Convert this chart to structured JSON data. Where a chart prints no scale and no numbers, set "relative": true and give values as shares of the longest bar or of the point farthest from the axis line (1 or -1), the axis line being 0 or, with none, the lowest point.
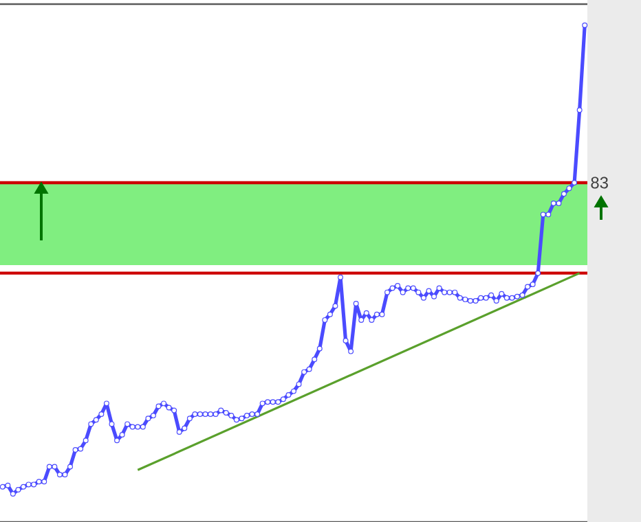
{
  "chart_data": {
    "type": "line",
    "relative": true,
    "categories": [
      null,
      null,
      null,
      null,
      null,
      null,
      null,
      null,
      null,
      null,
      null,
      null,
      null,
      null,
      null,
      null,
      null,
      null,
      null,
      null,
      null,
      null,
      null,
      null,
      null,
      null,
      null,
      null,
      null,
      null,
      null,
      null,
      null,
      null,
      null,
      null,
      null,
      null,
      null,
      null,
      null,
      null,
      null,
      null,
      null,
      null,
      null,
      null,
      null,
      null,
      null,
      null,
      null,
      null,
      null,
      null,
      null,
      null,
      null,
      null,
      null,
      null,
      null,
      null,
      null,
      null,
      null,
      null,
      null,
      null,
      null,
      null,
      null,
      null,
      null,
      null,
      null,
      null,
      null,
      null,
      null,
      null,
      null,
      null,
      null,
      null,
      null,
      null,
      null,
      null,
      null,
      null,
      null,
      null,
      null,
      null,
      null,
      null,
      null,
      null,
      null,
      null,
      null,
      null,
      null,
      null,
      null,
      null,
      null,
      null,
      null,
      null,
      null
    ],
    "series": [
      {
        "color": "#4b4bff",
        "marker": "circle",
        "values": [
          0.015,
          0.018,
          0,
          0.009,
          0.015,
          0.02,
          0.02,
          0.026,
          0.026,
          0.058,
          0.058,
          0.041,
          0.041,
          0.058,
          0.094,
          0.096,
          0.114,
          0.149,
          0.158,
          0.17,
          0.193,
          0.149,
          0.114,
          0.126,
          0.149,
          0.143,
          0.143,
          0.143,
          0.161,
          0.167,
          0.187,
          0.193,
          0.184,
          0.178,
          0.132,
          0.14,
          0.161,
          0.17,
          0.17,
          0.17,
          0.17,
          0.17,
          0.178,
          0.173,
          0.167,
          0.158,
          0.161,
          0.167,
          0.17,
          0.17,
          0.193,
          0.196,
          0.196,
          0.196,
          0.202,
          0.211,
          0.219,
          0.234,
          0.26,
          0.266,
          0.287,
          0.31,
          0.371,
          0.383,
          0.401,
          0.462,
          0.327,
          0.304,
          0.406,
          0.371,
          0.386,
          0.371,
          0.383,
          0.383,
          0.43,
          0.439,
          0.444,
          0.43,
          0.439,
          0.439,
          0.43,
          0.418,
          0.433,
          0.421,
          0.439,
          0.43,
          0.43,
          0.43,
          0.418,
          0.415,
          0.412,
          0.412,
          0.418,
          0.418,
          0.424,
          0.412,
          0.427,
          0.418,
          0.418,
          0.421,
          0.424,
          0.442,
          0.447,
          0.471,
          0.596,
          0.596,
          0.62,
          0.62,
          0.64,
          0.652,
          0.664,
          0.819,
          1
        ]
      },
      {
        "type": "line",
        "color": "#5aa02c",
        "marker": "none",
        "values": [
          null,
          null,
          null,
          null,
          null,
          null,
          null,
          null,
          null,
          null,
          null,
          null,
          null,
          null,
          null,
          null,
          null,
          null,
          null,
          null,
          null,
          null,
          null,
          null,
          null,
          null,
          0.051,
          null,
          null,
          null,
          null,
          null,
          null,
          null,
          null,
          null,
          null,
          null,
          null,
          null,
          null,
          null,
          null,
          null,
          null,
          null,
          null,
          null,
          null,
          null,
          null,
          null,
          null,
          null,
          null,
          null,
          null,
          null,
          null,
          null,
          null,
          null,
          null,
          null,
          null,
          null,
          null,
          null,
          null,
          null,
          null,
          null,
          null,
          null,
          null,
          null,
          null,
          null,
          null,
          null,
          null,
          null,
          null,
          null,
          null,
          null,
          null,
          null,
          null,
          null,
          null,
          null,
          null,
          null,
          null,
          null,
          null,
          null,
          null,
          null,
          null,
          null,
          null,
          null,
          null,
          null,
          null,
          null,
          null,
          null,
          null,
          0.471,
          null
        ]
      }
    ],
    "ref_lines": [
      {
        "axis": "y",
        "value": 0.664,
        "color": "#cc0000"
      },
      {
        "axis": "y",
        "value": 0.471,
        "color": "#cc0000"
      }
    ],
    "annotations": [
      "83"
    ],
    "bands": [
      {
        "axis": "y",
        "from": 0.488,
        "to": 0.664,
        "color": "#80ee80"
      }
    ]
  }
}
